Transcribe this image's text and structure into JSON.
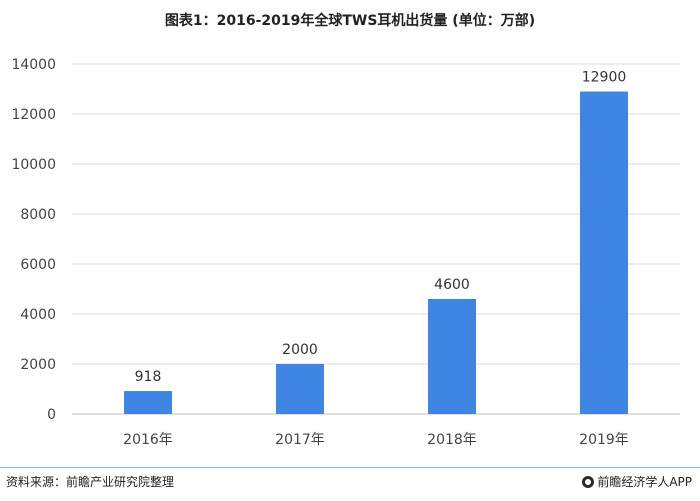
{
  "title": "图表1：2016-2019年全球TWS耳机出货量 (单位：万部)",
  "source": "资料来源：前瞻产业研究院整理",
  "brand": "前瞻经济学人APP",
  "colors": {
    "bar": "#3f86e3",
    "grid": "#d9d9d9",
    "axis": "#bfbfbf"
  },
  "chart_data": {
    "type": "bar",
    "title": "图表1：2016-2019年全球TWS耳机出货量 (单位：万部)",
    "categories": [
      "2016年",
      "2017年",
      "2018年",
      "2019年"
    ],
    "values": [
      918,
      2000,
      4600,
      12900
    ],
    "data_labels": [
      "918",
      "2000",
      "4600",
      "12900"
    ],
    "ylim": [
      0,
      14000
    ],
    "yticks": [
      0,
      2000,
      4000,
      6000,
      8000,
      10000,
      12000,
      14000
    ],
    "ytick_labels": [
      "0",
      "2000",
      "4000",
      "6000",
      "8000",
      "10000",
      "12000",
      "14000"
    ],
    "grid": true,
    "legend": "none"
  }
}
